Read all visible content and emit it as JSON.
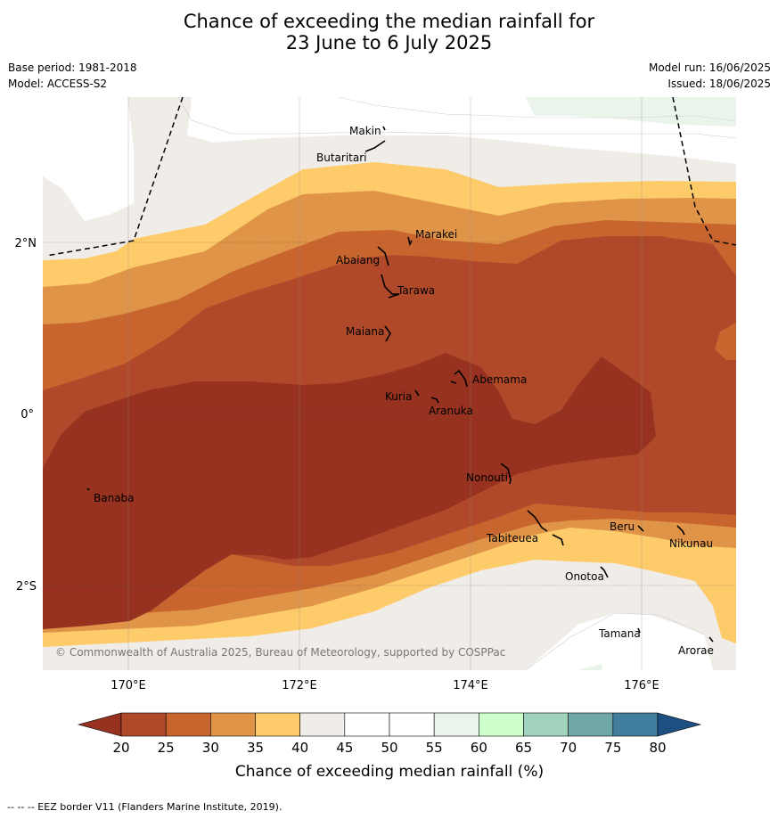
{
  "title_line1": "Chance of exceeding the median rainfall for",
  "title_line2": "23 June to 6 July 2025",
  "base_period": "Base period: 1981-2018",
  "model": "Model: ACCESS-S2",
  "model_run": "Model run: 16/06/2025",
  "issued": "Issued: 18/06/2025",
  "copyright": "© Commonwealth of Australia 2025, Bureau of Meteorology, supported by COSPPac",
  "lon_labels": [
    "170°E",
    "172°E",
    "174°E",
    "176°E"
  ],
  "lat_labels": [
    "2°N",
    "0°",
    "2°S"
  ],
  "islands": [
    "Makin",
    "Butaritari",
    "Marakei",
    "Abaiang",
    "Tarawa",
    "Maiana",
    "Abemama",
    "Kuria",
    "Aranuka",
    "Nonouti",
    "Banaba",
    "Beru",
    "Tabiteuea",
    "Nikunau",
    "Onotoa",
    "Tamana",
    "Arorae"
  ],
  "colorbar": {
    "ticks": [
      "20",
      "25",
      "30",
      "35",
      "40",
      "45",
      "50",
      "55",
      "60",
      "65",
      "70",
      "75",
      "80"
    ],
    "colors": [
      "#b0492a",
      "#c8652f",
      "#e09448",
      "#fdcb6a",
      "#f0ece7",
      "#ffffff",
      "#ffffff",
      "#eaf4ea",
      "#ccffcc",
      "#a0d2bd",
      "#70a8a8",
      "#417d9d"
    ],
    "under_color": "#96321f",
    "over_color": "#1e4f82",
    "label": "Chance of exceeding median rainfall (%)"
  },
  "footer": "--  --  -- EEZ border V11 (Flanders Marine Institute, 2019)."
}
